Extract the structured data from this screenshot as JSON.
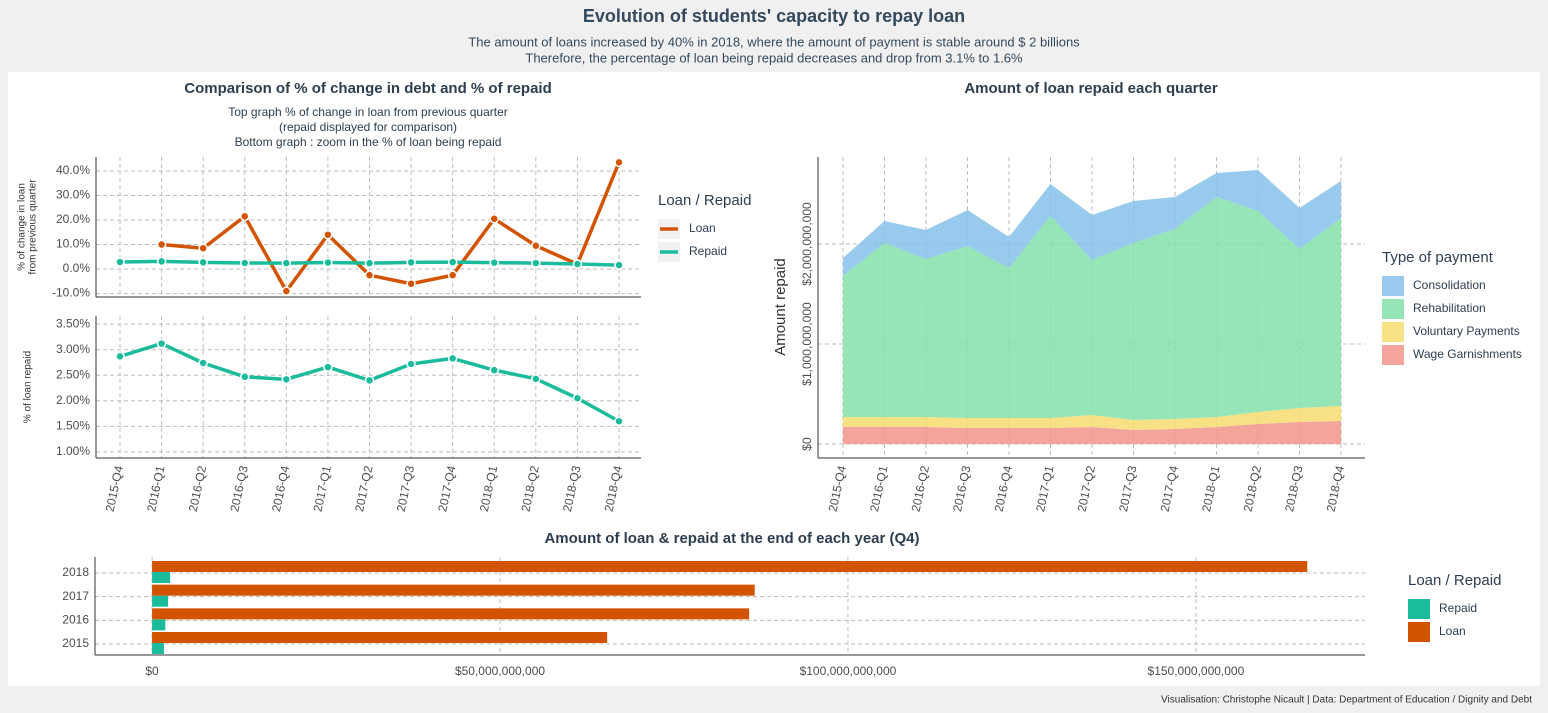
{
  "page": {
    "title": "Evolution of students' capacity to repay loan",
    "subtitle": [
      "The amount of loans increased by 40% in 2018, where the amount of payment is stable around $ 2 billions",
      "Therefore, the percentage of loan being repaid decreases and drop from 3.1% to 1.6%"
    ],
    "caption": "Visualisation: Christophe Nicault | Data: Department of Education / Dignity and Debt"
  },
  "chart_data": [
    {
      "type": "line",
      "title": "Comparison of % of change in debt and % of repaid",
      "subtitle": [
        "Top graph % of change in loan from previous quarter",
        "(repaid displayed for comparison)",
        "Bottom graph : zoom in the % of loan being repaid"
      ],
      "y_label": [
        "% of change in loan",
        "from previous quarter"
      ],
      "ylim": [
        -11.4,
        45.7
      ],
      "yticks": [
        {
          "value": -10,
          "label": "-10.0%"
        },
        {
          "value": 0,
          "label": "0.0%"
        },
        {
          "value": 10,
          "label": "10.0%"
        },
        {
          "value": 20,
          "label": "20.0%"
        },
        {
          "value": 30,
          "label": "30.0%"
        },
        {
          "value": 40,
          "label": "40.0%"
        }
      ],
      "grid": true,
      "legend_title": "Loan / Repaid",
      "series": [
        {
          "name": "Loan",
          "color": "#d35400",
          "values": [
            null,
            10,
            8.5,
            21.5,
            -9,
            14,
            -2.5,
            -6,
            -2.5,
            20.5,
            9.5,
            2,
            43.5
          ]
        },
        {
          "name": "Repaid",
          "color": "#1abc9c",
          "values": [
            2.87,
            3.12,
            2.74,
            2.47,
            2.42,
            2.66,
            2.4,
            2.72,
            2.83,
            2.6,
            2.43,
            2.05,
            1.6
          ]
        }
      ]
    },
    {
      "type": "line",
      "y_label": "% of loan repaid",
      "categories": [
        "2015-Q4",
        "2016-Q1",
        "2016-Q2",
        "2016-Q3",
        "2016-Q4",
        "2017-Q1",
        "2017-Q2",
        "2017-Q3",
        "2017-Q4",
        "2018-Q1",
        "2018-Q2",
        "2018-Q3",
        "2018-Q4"
      ],
      "ylim": [
        0.88,
        3.66
      ],
      "yticks": [
        {
          "value": 1,
          "label": "1.00%"
        },
        {
          "value": 1.5,
          "label": "1.50%"
        },
        {
          "value": 2,
          "label": "2.00%"
        },
        {
          "value": 2.5,
          "label": "2.50%"
        },
        {
          "value": 3,
          "label": "3.00%"
        },
        {
          "value": 3.5,
          "label": "3.50%"
        }
      ],
      "grid": true,
      "series": [
        {
          "color": "#1abc9c",
          "values": [
            2.87,
            3.12,
            2.74,
            2.47,
            2.42,
            2.66,
            2.4,
            2.72,
            2.83,
            2.6,
            2.43,
            2.05,
            1.6
          ]
        }
      ]
    },
    {
      "type": "area",
      "stacked": true,
      "title": "Amount of loan repaid each quarter",
      "y_label": "Amount repaid",
      "categories": [
        "2015-Q4",
        "2016-Q1",
        "2016-Q2",
        "2016-Q3",
        "2016-Q4",
        "2017-Q1",
        "2017-Q2",
        "2017-Q3",
        "2017-Q4",
        "2018-Q1",
        "2018-Q2",
        "2018-Q3",
        "2018-Q4"
      ],
      "ylim": [
        -140000000,
        2870000000
      ],
      "yticks": [
        {
          "value": 0,
          "label": "$0"
        },
        {
          "value": 1000000000,
          "label": "$1,000,000,000"
        },
        {
          "value": 2000000000,
          "label": "$2,000,000,000"
        }
      ],
      "grid": true,
      "legend_title": "Type of payment",
      "series": [
        {
          "name": "Consolidation",
          "color": "#85c1e9",
          "values": [
            180000000,
            220000000,
            290000000,
            360000000,
            310000000,
            320000000,
            450000000,
            420000000,
            320000000,
            240000000,
            410000000,
            410000000,
            370000000
          ]
        },
        {
          "name": "Rehabilitation",
          "color": "#82e0aa",
          "values": [
            1410000000,
            1740000000,
            1580000000,
            1720000000,
            1500000000,
            2020000000,
            1550000000,
            1770000000,
            1900000000,
            2200000000,
            2010000000,
            1590000000,
            1880000000
          ]
        },
        {
          "name": "Voluntary Payments",
          "color": "#f7dc6f",
          "values": [
            100000000,
            100000000,
            100000000,
            100000000,
            100000000,
            100000000,
            120000000,
            100000000,
            100000000,
            100000000,
            120000000,
            140000000,
            150000000
          ]
        },
        {
          "name": "Wage Garnishments",
          "color": "#f1948a",
          "values": [
            170000000,
            170000000,
            170000000,
            160000000,
            160000000,
            160000000,
            170000000,
            140000000,
            150000000,
            170000000,
            200000000,
            220000000,
            230000000
          ]
        }
      ]
    },
    {
      "type": "bar",
      "orientation": "horizontal",
      "title": "Amount of loan & repaid at the end of each year (Q4)",
      "categories": [
        "2015",
        "2016",
        "2017",
        "2018"
      ],
      "xlim": [
        -8200000000,
        174300000000
      ],
      "xticks": [
        {
          "value": 0,
          "label": "$0"
        },
        {
          "value": 50000000000,
          "label": "$50,000,000,000"
        },
        {
          "value": 100000000000,
          "label": "$100,000,000,000"
        },
        {
          "value": 150000000000,
          "label": "$150,000,000,000"
        }
      ],
      "grid": true,
      "legend_title": "Loan / Repaid",
      "series": [
        {
          "name": "Repaid",
          "color": "#1abc9c",
          "values": [
            1700000000,
            1900000000,
            2300000000,
            2600000000
          ]
        },
        {
          "name": "Loan",
          "color": "#d35400",
          "values": [
            65400000000,
            85800000000,
            86600000000,
            166000000000
          ]
        }
      ]
    }
  ]
}
